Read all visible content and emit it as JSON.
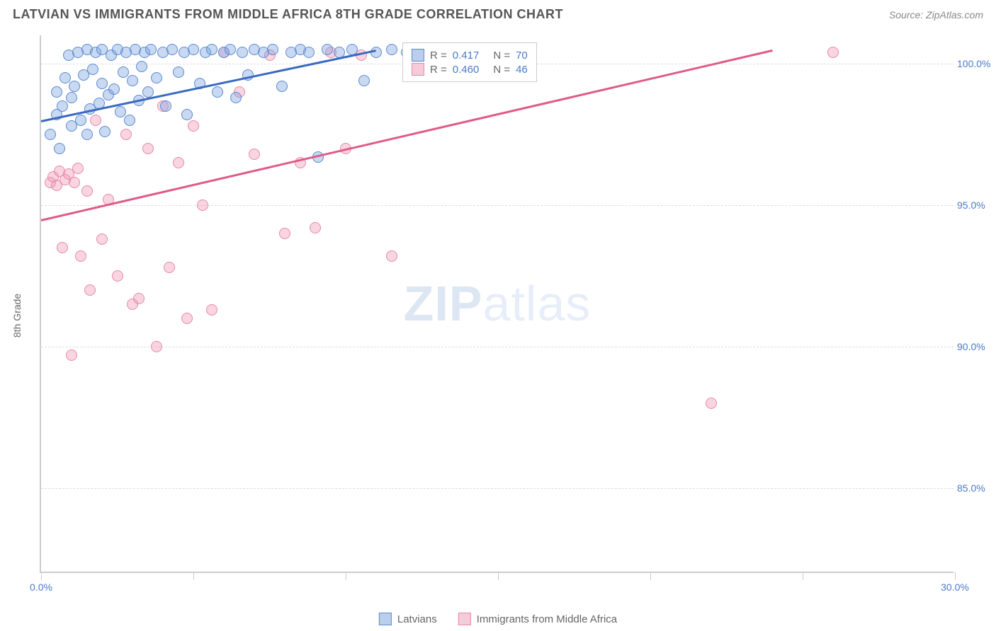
{
  "title": "LATVIAN VS IMMIGRANTS FROM MIDDLE AFRICA 8TH GRADE CORRELATION CHART",
  "source": "Source: ZipAtlas.com",
  "ylabel": "8th Grade",
  "watermark_zip": "ZIP",
  "watermark_atlas": "atlas",
  "chart": {
    "type": "scatter",
    "xlim": [
      0,
      30
    ],
    "ylim": [
      82,
      101
    ],
    "yticks": [
      {
        "v": 85,
        "label": "85.0%"
      },
      {
        "v": 90,
        "label": "90.0%"
      },
      {
        "v": 95,
        "label": "95.0%"
      },
      {
        "v": 100,
        "label": "100.0%"
      }
    ],
    "xticks_major": [
      0,
      5,
      10,
      15,
      20,
      25,
      30
    ],
    "xtick_labels": [
      {
        "v": 0,
        "label": "0.0%"
      },
      {
        "v": 30,
        "label": "30.0%"
      }
    ],
    "background_color": "#ffffff",
    "grid_color": "#dddddd",
    "axis_color": "#cccccc",
    "series": {
      "blue": {
        "name": "Latvians",
        "color_fill": "rgba(120,160,220,0.4)",
        "color_stroke": "#5a8ad0",
        "trend_color": "#3a6ac0",
        "R": "0.417",
        "N": "70",
        "trend": {
          "x1": 0,
          "y1": 98.0,
          "x2": 11,
          "y2": 100.5
        },
        "points": [
          [
            0.3,
            97.5
          ],
          [
            0.5,
            98.2
          ],
          [
            0.5,
            99.0
          ],
          [
            0.6,
            97.0
          ],
          [
            0.7,
            98.5
          ],
          [
            0.8,
            99.5
          ],
          [
            0.9,
            100.3
          ],
          [
            1.0,
            97.8
          ],
          [
            1.0,
            98.8
          ],
          [
            1.1,
            99.2
          ],
          [
            1.2,
            100.4
          ],
          [
            1.3,
            98.0
          ],
          [
            1.4,
            99.6
          ],
          [
            1.5,
            100.5
          ],
          [
            1.5,
            97.5
          ],
          [
            1.6,
            98.4
          ],
          [
            1.7,
            99.8
          ],
          [
            1.8,
            100.4
          ],
          [
            1.9,
            98.6
          ],
          [
            2.0,
            99.3
          ],
          [
            2.0,
            100.5
          ],
          [
            2.1,
            97.6
          ],
          [
            2.2,
            98.9
          ],
          [
            2.3,
            100.3
          ],
          [
            2.4,
            99.1
          ],
          [
            2.5,
            100.5
          ],
          [
            2.6,
            98.3
          ],
          [
            2.7,
            99.7
          ],
          [
            2.8,
            100.4
          ],
          [
            2.9,
            98.0
          ],
          [
            3.0,
            99.4
          ],
          [
            3.1,
            100.5
          ],
          [
            3.2,
            98.7
          ],
          [
            3.3,
            99.9
          ],
          [
            3.4,
            100.4
          ],
          [
            3.5,
            99.0
          ],
          [
            3.6,
            100.5
          ],
          [
            3.8,
            99.5
          ],
          [
            4.0,
            100.4
          ],
          [
            4.1,
            98.5
          ],
          [
            4.3,
            100.5
          ],
          [
            4.5,
            99.7
          ],
          [
            4.7,
            100.4
          ],
          [
            4.8,
            98.2
          ],
          [
            5.0,
            100.5
          ],
          [
            5.2,
            99.3
          ],
          [
            5.4,
            100.4
          ],
          [
            5.6,
            100.5
          ],
          [
            5.8,
            99.0
          ],
          [
            6.0,
            100.4
          ],
          [
            6.2,
            100.5
          ],
          [
            6.4,
            98.8
          ],
          [
            6.6,
            100.4
          ],
          [
            6.8,
            99.6
          ],
          [
            7.0,
            100.5
          ],
          [
            7.3,
            100.4
          ],
          [
            7.6,
            100.5
          ],
          [
            7.9,
            99.2
          ],
          [
            8.2,
            100.4
          ],
          [
            8.5,
            100.5
          ],
          [
            8.8,
            100.4
          ],
          [
            9.1,
            96.7
          ],
          [
            9.4,
            100.5
          ],
          [
            9.8,
            100.4
          ],
          [
            10.2,
            100.5
          ],
          [
            10.6,
            99.4
          ],
          [
            11.0,
            100.4
          ],
          [
            11.5,
            100.5
          ],
          [
            12.0,
            100.4
          ],
          [
            12.5,
            100.5
          ]
        ]
      },
      "pink": {
        "name": "Immigrants from Middle Africa",
        "color_fill": "rgba(240,150,180,0.4)",
        "color_stroke": "#e888aa",
        "trend_color": "#e05a88",
        "R": "0.460",
        "N": "46",
        "trend": {
          "x1": 0,
          "y1": 94.5,
          "x2": 24,
          "y2": 100.5
        },
        "points": [
          [
            0.3,
            95.8
          ],
          [
            0.4,
            96.0
          ],
          [
            0.5,
            95.7
          ],
          [
            0.6,
            96.2
          ],
          [
            0.7,
            93.5
          ],
          [
            0.8,
            95.9
          ],
          [
            0.9,
            96.1
          ],
          [
            1.0,
            89.7
          ],
          [
            1.1,
            95.8
          ],
          [
            1.2,
            96.3
          ],
          [
            1.3,
            93.2
          ],
          [
            1.5,
            95.5
          ],
          [
            1.6,
            92.0
          ],
          [
            1.8,
            98.0
          ],
          [
            2.0,
            93.8
          ],
          [
            2.2,
            95.2
          ],
          [
            2.5,
            92.5
          ],
          [
            2.8,
            97.5
          ],
          [
            3.0,
            91.5
          ],
          [
            3.2,
            91.7
          ],
          [
            3.5,
            97.0
          ],
          [
            3.8,
            90.0
          ],
          [
            4.0,
            98.5
          ],
          [
            4.2,
            92.8
          ],
          [
            4.5,
            96.5
          ],
          [
            4.8,
            91.0
          ],
          [
            5.0,
            97.8
          ],
          [
            5.3,
            95.0
          ],
          [
            5.6,
            91.3
          ],
          [
            6.0,
            100.4
          ],
          [
            6.5,
            99.0
          ],
          [
            7.0,
            96.8
          ],
          [
            7.5,
            100.3
          ],
          [
            8.0,
            94.0
          ],
          [
            8.5,
            96.5
          ],
          [
            9.0,
            94.2
          ],
          [
            9.5,
            100.4
          ],
          [
            10.0,
            97.0
          ],
          [
            10.5,
            100.3
          ],
          [
            11.5,
            93.2
          ],
          [
            13.0,
            100.4
          ],
          [
            14.0,
            100.3
          ],
          [
            14.5,
            100.4
          ],
          [
            16.0,
            100.3
          ],
          [
            22.0,
            88.0
          ],
          [
            26.0,
            100.4
          ]
        ]
      }
    },
    "stats_box": {
      "R_prefix": "R = ",
      "N_prefix": "N = "
    }
  }
}
